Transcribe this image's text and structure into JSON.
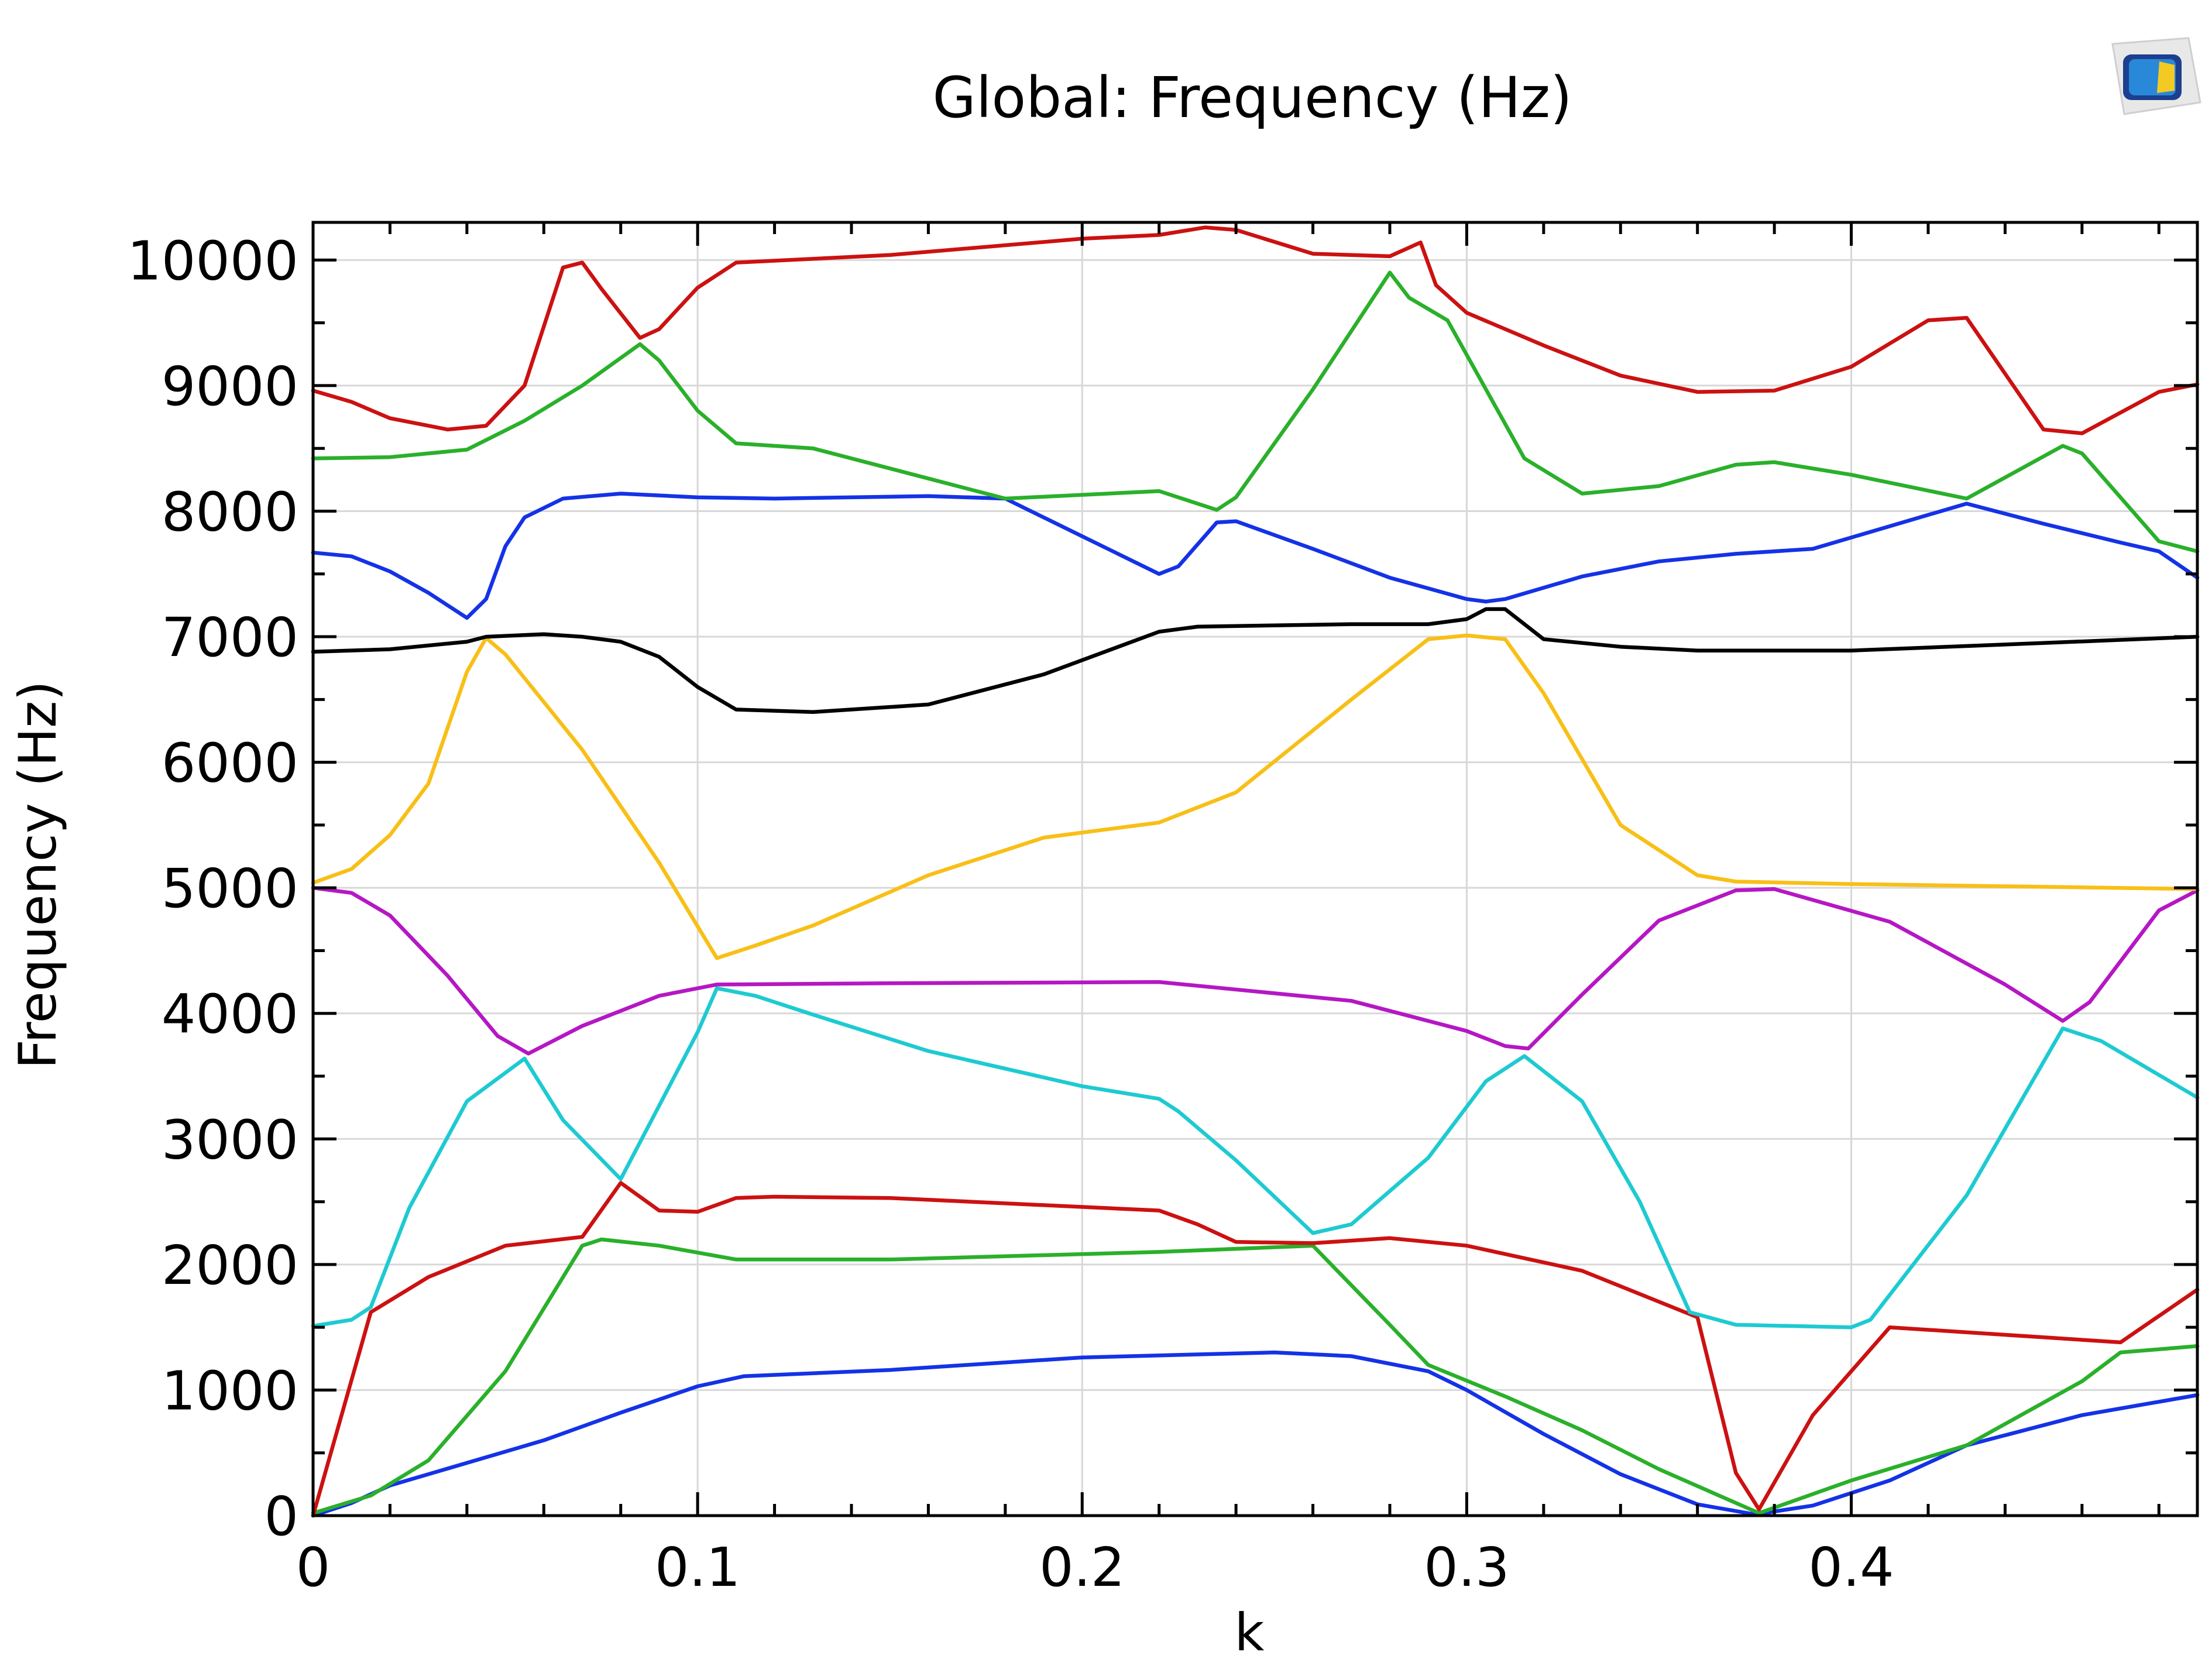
{
  "chart_data": {
    "type": "line",
    "title": "Global: Frequency (Hz)",
    "xlabel": "k",
    "ylabel": "Frequency (Hz)",
    "xlim": [
      0,
      0.49
    ],
    "ylim": [
      0,
      10300
    ],
    "grid": true,
    "legend": "none",
    "x_ticks": [
      "0",
      "0.1",
      "0.2",
      "0.3",
      "0.4"
    ],
    "x_tick_values": [
      0,
      0.1,
      0.2,
      0.3,
      0.4
    ],
    "y_ticks": [
      "0",
      "1000",
      "2000",
      "3000",
      "4000",
      "5000",
      "6000",
      "7000",
      "8000",
      "9000",
      "10000"
    ],
    "y_tick_values": [
      0,
      1000,
      2000,
      3000,
      4000,
      5000,
      6000,
      7000,
      8000,
      9000,
      10000
    ],
    "series": [
      {
        "color": "#1432e6",
        "points": [
          [
            0,
            0
          ],
          [
            0.01,
            100
          ],
          [
            0.02,
            240
          ],
          [
            0.04,
            420
          ],
          [
            0.06,
            600
          ],
          [
            0.08,
            820
          ],
          [
            0.1,
            1030
          ],
          [
            0.112,
            1110
          ],
          [
            0.15,
            1160
          ],
          [
            0.2,
            1260
          ],
          [
            0.25,
            1300
          ],
          [
            0.27,
            1270
          ],
          [
            0.29,
            1150
          ],
          [
            0.3,
            1000
          ],
          [
            0.32,
            650
          ],
          [
            0.34,
            330
          ],
          [
            0.36,
            90
          ],
          [
            0.375,
            10
          ],
          [
            0.39,
            80
          ],
          [
            0.41,
            280
          ],
          [
            0.43,
            560
          ],
          [
            0.46,
            800
          ],
          [
            0.49,
            960
          ]
        ]
      },
      {
        "color": "#2ab02a",
        "points": [
          [
            0,
            20
          ],
          [
            0.015,
            160
          ],
          [
            0.03,
            440
          ],
          [
            0.05,
            1150
          ],
          [
            0.07,
            2150
          ],
          [
            0.075,
            2200
          ],
          [
            0.09,
            2150
          ],
          [
            0.11,
            2040
          ],
          [
            0.15,
            2040
          ],
          [
            0.22,
            2100
          ],
          [
            0.26,
            2150
          ],
          [
            0.28,
            1520
          ],
          [
            0.29,
            1200
          ],
          [
            0.31,
            950
          ],
          [
            0.33,
            680
          ],
          [
            0.35,
            370
          ],
          [
            0.376,
            20
          ],
          [
            0.4,
            280
          ],
          [
            0.43,
            560
          ],
          [
            0.46,
            1070
          ],
          [
            0.47,
            1300
          ],
          [
            0.49,
            1350
          ]
        ]
      },
      {
        "color": "#cc1111",
        "points": [
          [
            0,
            0
          ],
          [
            0.015,
            1620
          ],
          [
            0.03,
            1900
          ],
          [
            0.05,
            2150
          ],
          [
            0.07,
            2220
          ],
          [
            0.08,
            2650
          ],
          [
            0.09,
            2430
          ],
          [
            0.1,
            2420
          ],
          [
            0.11,
            2530
          ],
          [
            0.12,
            2540
          ],
          [
            0.15,
            2530
          ],
          [
            0.22,
            2430
          ],
          [
            0.23,
            2320
          ],
          [
            0.24,
            2180
          ],
          [
            0.26,
            2170
          ],
          [
            0.28,
            2210
          ],
          [
            0.3,
            2150
          ],
          [
            0.33,
            1950
          ],
          [
            0.36,
            1580
          ],
          [
            0.37,
            340
          ],
          [
            0.376,
            50
          ],
          [
            0.39,
            800
          ],
          [
            0.41,
            1500
          ],
          [
            0.45,
            1420
          ],
          [
            0.47,
            1380
          ],
          [
            0.49,
            1800
          ]
        ]
      },
      {
        "color": "#1ecad2",
        "points": [
          [
            0,
            1510
          ],
          [
            0.01,
            1560
          ],
          [
            0.015,
            1660
          ],
          [
            0.025,
            2450
          ],
          [
            0.04,
            3300
          ],
          [
            0.055,
            3640
          ],
          [
            0.065,
            3150
          ],
          [
            0.08,
            2680
          ],
          [
            0.1,
            3850
          ],
          [
            0.105,
            4200
          ],
          [
            0.115,
            4140
          ],
          [
            0.13,
            3990
          ],
          [
            0.16,
            3700
          ],
          [
            0.2,
            3420
          ],
          [
            0.22,
            3320
          ],
          [
            0.225,
            3220
          ],
          [
            0.24,
            2830
          ],
          [
            0.26,
            2250
          ],
          [
            0.27,
            2320
          ],
          [
            0.29,
            2850
          ],
          [
            0.305,
            3460
          ],
          [
            0.315,
            3660
          ],
          [
            0.33,
            3300
          ],
          [
            0.345,
            2500
          ],
          [
            0.358,
            1620
          ],
          [
            0.37,
            1520
          ],
          [
            0.4,
            1500
          ],
          [
            0.405,
            1560
          ],
          [
            0.43,
            2550
          ],
          [
            0.455,
            3880
          ],
          [
            0.465,
            3780
          ],
          [
            0.49,
            3330
          ]
        ]
      },
      {
        "color": "#b517c4",
        "points": [
          [
            0,
            5000
          ],
          [
            0.01,
            4960
          ],
          [
            0.02,
            4780
          ],
          [
            0.035,
            4300
          ],
          [
            0.048,
            3820
          ],
          [
            0.056,
            3680
          ],
          [
            0.07,
            3900
          ],
          [
            0.09,
            4140
          ],
          [
            0.105,
            4230
          ],
          [
            0.15,
            4240
          ],
          [
            0.22,
            4250
          ],
          [
            0.27,
            4100
          ],
          [
            0.3,
            3860
          ],
          [
            0.31,
            3740
          ],
          [
            0.316,
            3720
          ],
          [
            0.33,
            4150
          ],
          [
            0.35,
            4740
          ],
          [
            0.37,
            4980
          ],
          [
            0.38,
            4990
          ],
          [
            0.41,
            4730
          ],
          [
            0.44,
            4230
          ],
          [
            0.455,
            3940
          ],
          [
            0.462,
            4090
          ],
          [
            0.48,
            4820
          ],
          [
            0.49,
            4980
          ]
        ]
      },
      {
        "color": "#f8bf17",
        "points": [
          [
            0,
            5040
          ],
          [
            0.01,
            5150
          ],
          [
            0.02,
            5420
          ],
          [
            0.03,
            5830
          ],
          [
            0.04,
            6720
          ],
          [
            0.045,
            6990
          ],
          [
            0.05,
            6860
          ],
          [
            0.07,
            6100
          ],
          [
            0.09,
            5200
          ],
          [
            0.105,
            4440
          ],
          [
            0.115,
            4540
          ],
          [
            0.13,
            4700
          ],
          [
            0.16,
            5100
          ],
          [
            0.19,
            5400
          ],
          [
            0.22,
            5520
          ],
          [
            0.24,
            5760
          ],
          [
            0.27,
            6500
          ],
          [
            0.29,
            6980
          ],
          [
            0.3,
            7010
          ],
          [
            0.31,
            6980
          ],
          [
            0.32,
            6550
          ],
          [
            0.34,
            5500
          ],
          [
            0.36,
            5100
          ],
          [
            0.37,
            5050
          ],
          [
            0.4,
            5030
          ],
          [
            0.49,
            4990
          ]
        ]
      },
      {
        "color": "#000000",
        "points": [
          [
            0,
            6880
          ],
          [
            0.02,
            6900
          ],
          [
            0.04,
            6960
          ],
          [
            0.045,
            7000
          ],
          [
            0.06,
            7020
          ],
          [
            0.07,
            7000
          ],
          [
            0.08,
            6960
          ],
          [
            0.09,
            6840
          ],
          [
            0.1,
            6600
          ],
          [
            0.11,
            6420
          ],
          [
            0.13,
            6400
          ],
          [
            0.16,
            6460
          ],
          [
            0.19,
            6700
          ],
          [
            0.22,
            7040
          ],
          [
            0.23,
            7080
          ],
          [
            0.27,
            7100
          ],
          [
            0.29,
            7100
          ],
          [
            0.3,
            7140
          ],
          [
            0.305,
            7220
          ],
          [
            0.31,
            7220
          ],
          [
            0.32,
            6980
          ],
          [
            0.34,
            6920
          ],
          [
            0.36,
            6890
          ],
          [
            0.4,
            6890
          ],
          [
            0.45,
            6950
          ],
          [
            0.49,
            7000
          ]
        ]
      },
      {
        "color": "#1432e6",
        "points": [
          [
            0,
            7670
          ],
          [
            0.01,
            7640
          ],
          [
            0.02,
            7520
          ],
          [
            0.03,
            7350
          ],
          [
            0.04,
            7150
          ],
          [
            0.045,
            7300
          ],
          [
            0.05,
            7720
          ],
          [
            0.055,
            7950
          ],
          [
            0.065,
            8100
          ],
          [
            0.08,
            8140
          ],
          [
            0.1,
            8110
          ],
          [
            0.12,
            8100
          ],
          [
            0.16,
            8120
          ],
          [
            0.18,
            8100
          ],
          [
            0.2,
            7800
          ],
          [
            0.22,
            7500
          ],
          [
            0.225,
            7560
          ],
          [
            0.235,
            7910
          ],
          [
            0.24,
            7920
          ],
          [
            0.26,
            7700
          ],
          [
            0.28,
            7470
          ],
          [
            0.3,
            7300
          ],
          [
            0.305,
            7280
          ],
          [
            0.31,
            7300
          ],
          [
            0.33,
            7480
          ],
          [
            0.35,
            7600
          ],
          [
            0.37,
            7660
          ],
          [
            0.39,
            7700
          ],
          [
            0.41,
            7880
          ],
          [
            0.43,
            8060
          ],
          [
            0.45,
            7900
          ],
          [
            0.47,
            7750
          ],
          [
            0.48,
            7680
          ],
          [
            0.49,
            7470
          ]
        ]
      },
      {
        "color": "#2ab02a",
        "points": [
          [
            0,
            8420
          ],
          [
            0.02,
            8430
          ],
          [
            0.04,
            8490
          ],
          [
            0.055,
            8720
          ],
          [
            0.07,
            9000
          ],
          [
            0.085,
            9330
          ],
          [
            0.09,
            9200
          ],
          [
            0.1,
            8800
          ],
          [
            0.11,
            8540
          ],
          [
            0.13,
            8500
          ],
          [
            0.16,
            8260
          ],
          [
            0.18,
            8100
          ],
          [
            0.22,
            8160
          ],
          [
            0.235,
            8010
          ],
          [
            0.24,
            8110
          ],
          [
            0.26,
            8970
          ],
          [
            0.28,
            9900
          ],
          [
            0.285,
            9700
          ],
          [
            0.295,
            9520
          ],
          [
            0.305,
            8970
          ],
          [
            0.315,
            8420
          ],
          [
            0.33,
            8140
          ],
          [
            0.35,
            8200
          ],
          [
            0.37,
            8370
          ],
          [
            0.38,
            8390
          ],
          [
            0.4,
            8290
          ],
          [
            0.43,
            8100
          ],
          [
            0.455,
            8520
          ],
          [
            0.46,
            8460
          ],
          [
            0.48,
            7760
          ],
          [
            0.49,
            7680
          ]
        ]
      },
      {
        "color": "#cc1111",
        "points": [
          [
            0,
            8960
          ],
          [
            0.01,
            8870
          ],
          [
            0.02,
            8740
          ],
          [
            0.035,
            8650
          ],
          [
            0.045,
            8680
          ],
          [
            0.055,
            9000
          ],
          [
            0.065,
            9940
          ],
          [
            0.07,
            9980
          ],
          [
            0.075,
            9770
          ],
          [
            0.085,
            9380
          ],
          [
            0.09,
            9450
          ],
          [
            0.1,
            9780
          ],
          [
            0.11,
            9980
          ],
          [
            0.15,
            10040
          ],
          [
            0.2,
            10170
          ],
          [
            0.22,
            10200
          ],
          [
            0.232,
            10260
          ],
          [
            0.24,
            10240
          ],
          [
            0.26,
            10050
          ],
          [
            0.28,
            10030
          ],
          [
            0.288,
            10140
          ],
          [
            0.292,
            9800
          ],
          [
            0.3,
            9580
          ],
          [
            0.32,
            9320
          ],
          [
            0.34,
            9080
          ],
          [
            0.36,
            8950
          ],
          [
            0.38,
            8960
          ],
          [
            0.4,
            9150
          ],
          [
            0.42,
            9520
          ],
          [
            0.43,
            9540
          ],
          [
            0.45,
            8650
          ],
          [
            0.46,
            8620
          ],
          [
            0.48,
            8950
          ],
          [
            0.49,
            9010
          ]
        ]
      }
    ]
  }
}
